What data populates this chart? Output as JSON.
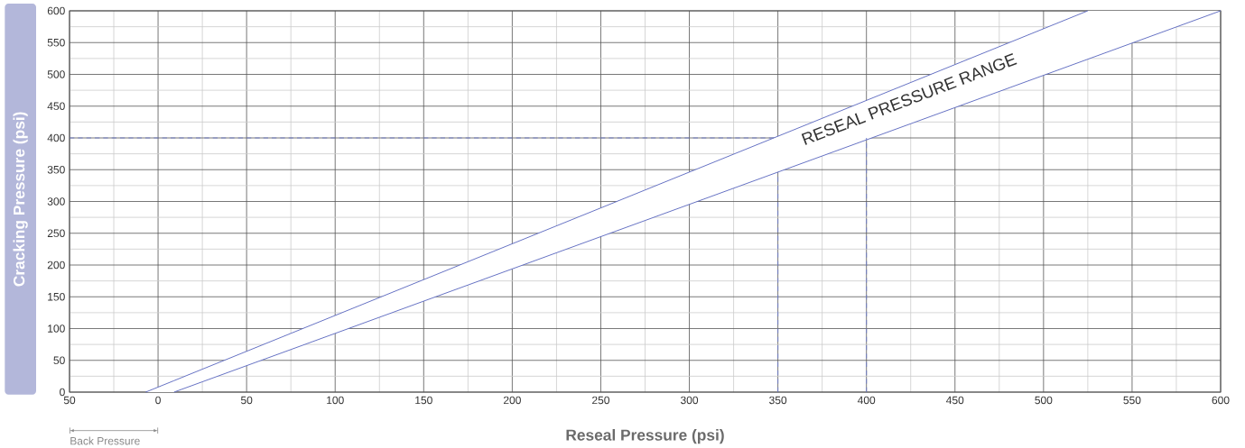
{
  "chart_data": {
    "type": "line",
    "xlabel": "Reseal Pressure (psi)",
    "ylabel": "Cracking Pressure (psi)",
    "xlim": [
      -50,
      600
    ],
    "ylim": [
      0,
      600
    ],
    "xticks": [
      {
        "value": -50,
        "label": "50"
      },
      0,
      50,
      100,
      150,
      200,
      250,
      300,
      350,
      400,
      450,
      500,
      550,
      600
    ],
    "yticks": [
      0,
      50,
      100,
      150,
      200,
      250,
      300,
      350,
      400,
      450,
      500,
      550,
      600
    ],
    "grid": true,
    "series": [
      {
        "color": "#5b68c0",
        "x": [
          -7,
          9,
          525,
          600
        ],
        "values": [
          0,
          18,
          600,
          null
        ],
        "lower": [
          0,
          0,
          524,
          600
        ],
        "upper": [
          0,
          18,
          600,
          600
        ]
      },
      {
        "color": "#5b68c0",
        "x": [
          9,
          600
        ],
        "values": [
          0,
          600
        ]
      },
      {
        "color": "#6f7cc8",
        "line_style": "dashed",
        "x": [
          -50,
          349
        ],
        "values": [
          400,
          400
        ]
      },
      {
        "color": "#6f7cc8",
        "line_style": "dashed",
        "x": [
          350,
          350
        ],
        "values": [
          0,
          345
        ]
      },
      {
        "color": "#6f7cc8",
        "line_style": "dashed",
        "x": [
          400,
          400
        ],
        "values": [
          0,
          400
        ]
      }
    ],
    "annotations": [
      "RESEAL PRESSURE RANGE",
      "Back Pressure"
    ]
  }
}
